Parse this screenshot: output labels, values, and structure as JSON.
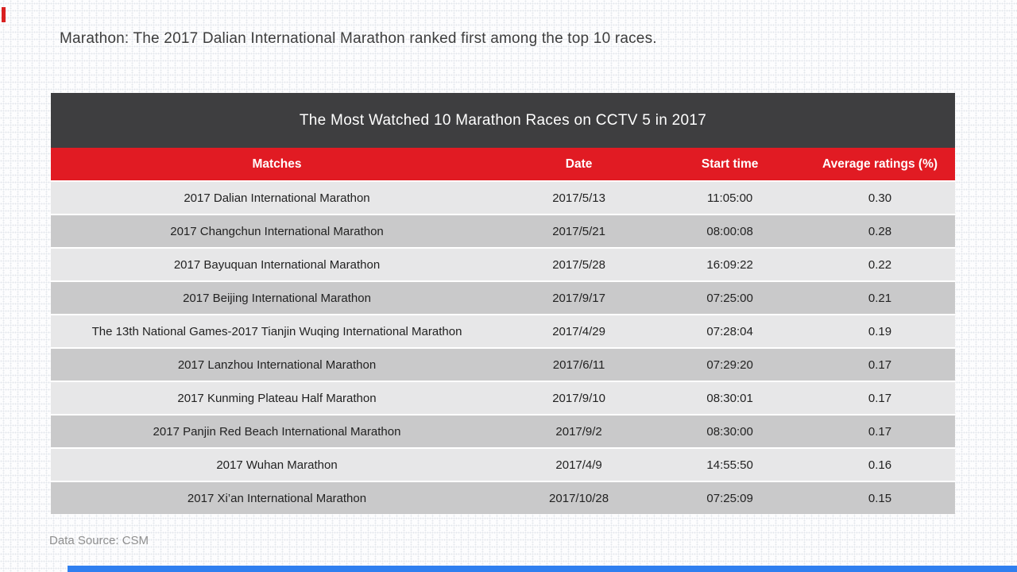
{
  "page": {
    "headline": "Marathon: The 2017 Dalian International Marathon ranked first among the top 10 races.",
    "source_note": "Data Source: CSM"
  },
  "chart_data": {
    "type": "table",
    "title": "The Most Watched 10 Marathon Races on CCTV 5 in 2017",
    "columns": [
      "Matches",
      "Date",
      "Start time",
      "Average ratings (%)"
    ],
    "rows": [
      [
        "2017 Dalian International Marathon",
        "2017/5/13",
        "11:05:00",
        "0.30"
      ],
      [
        "2017 Changchun International Marathon",
        "2017/5/21",
        "08:00:08",
        "0.28"
      ],
      [
        "2017 Bayuquan International Marathon",
        "2017/5/28",
        "16:09:22",
        "0.22"
      ],
      [
        "2017 Beijing International Marathon",
        "2017/9/17",
        "07:25:00",
        "0.21"
      ],
      [
        "The 13th National Games-2017 Tianjin Wuqing International Marathon",
        "2017/4/29",
        "07:28:04",
        "0.19"
      ],
      [
        "2017 Lanzhou International Marathon",
        "2017/6/11",
        "07:29:20",
        "0.17"
      ],
      [
        "2017 Kunming Plateau Half Marathon",
        "2017/9/10",
        "08:30:01",
        "0.17"
      ],
      [
        "2017 Panjin Red Beach International Marathon",
        "2017/9/2",
        "08:30:00",
        "0.17"
      ],
      [
        "2017 Wuhan Marathon",
        "2017/4/9",
        "14:55:50",
        "0.16"
      ],
      [
        "2017 Xi’an International Marathon",
        "2017/10/28",
        "07:25:09",
        "0.15"
      ]
    ],
    "layout_hints": {
      "row_striping": "alternating light/dark gray",
      "all_cells_centered": true
    }
  },
  "colors": {
    "title_band_bg": "#3e3e40",
    "column_header_bg": "#e11b23",
    "row_light": "#e7e7e8",
    "row_dark": "#c9c9ca",
    "headline_text": "#3d3d3d",
    "source_text": "#8f8f8f",
    "corner_marker": "#d92020",
    "scrollbar_thumb": "#2f7ff0"
  }
}
